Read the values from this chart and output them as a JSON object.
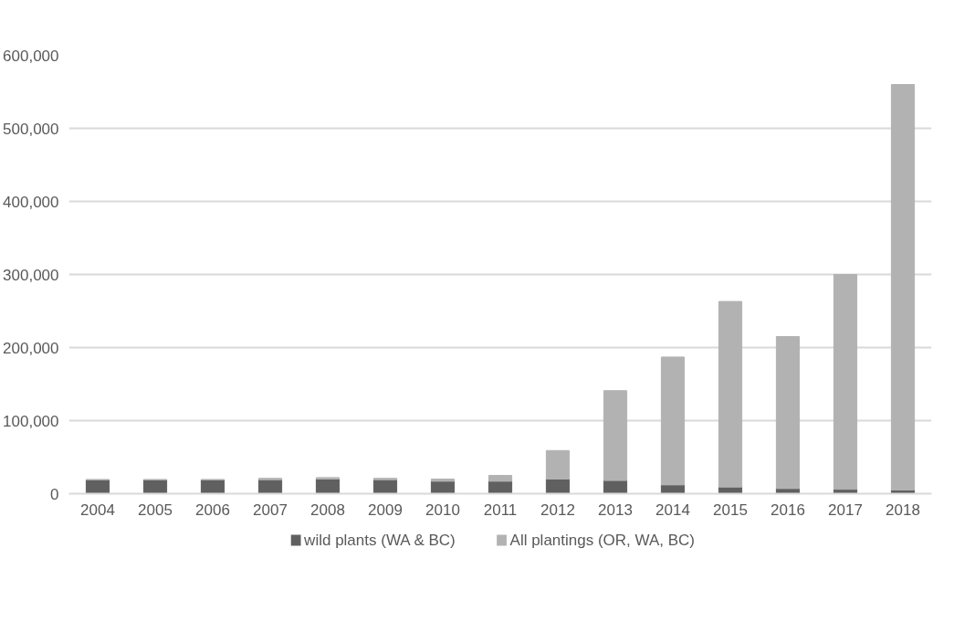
{
  "chart_data": {
    "type": "bar",
    "stacked": true,
    "categories": [
      "2004",
      "2005",
      "2006",
      "2007",
      "2008",
      "2009",
      "2010",
      "2011",
      "2012",
      "2013",
      "2014",
      "2015",
      "2016",
      "2017",
      "2018"
    ],
    "series": [
      {
        "name": "wild plants (WA & BC)",
        "color": "#606060",
        "values": [
          19000,
          19000,
          19000,
          19000,
          20000,
          19000,
          17000,
          17000,
          20000,
          18000,
          12000,
          9000,
          7000,
          6000,
          5000
        ]
      },
      {
        "name": "All plantings (OR, WA, BC)",
        "color": "#b2b2b2",
        "values": [
          0,
          0,
          0,
          2000,
          2000,
          2000,
          3000,
          8000,
          39000,
          123000,
          175000,
          254000,
          208000,
          294000,
          555000
        ]
      }
    ],
    "ylim": [
      0,
      600000
    ],
    "yticks": [
      {
        "value": 0,
        "label": "0"
      },
      {
        "value": 100000,
        "label": "100,000"
      },
      {
        "value": 200000,
        "label": "200,000"
      },
      {
        "value": 300000,
        "label": "300,000"
      },
      {
        "value": 400000,
        "label": "400,000"
      },
      {
        "value": 500000,
        "label": "500,000"
      },
      {
        "value": 600000,
        "label": "600,000"
      }
    ],
    "grid": "y",
    "legend": "bottom"
  }
}
